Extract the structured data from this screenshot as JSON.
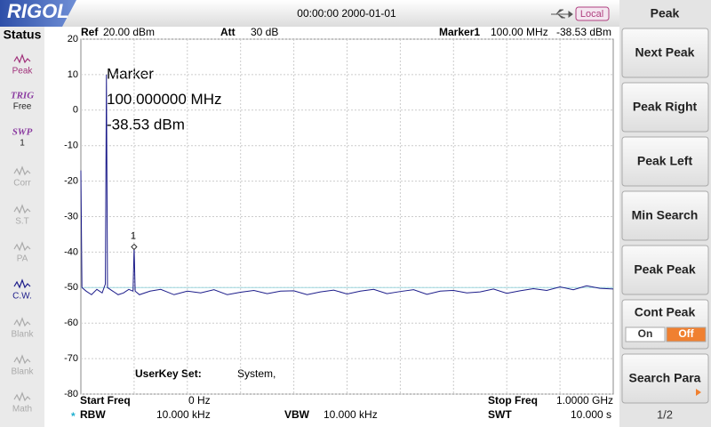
{
  "header": {
    "logo": "RIGOL",
    "datetime": "00:00:00 2000-01-01",
    "mode": "Local"
  },
  "status_panel": {
    "title": "Status",
    "items": [
      {
        "label": "Peak"
      },
      {
        "title": "TRIG",
        "label": "Free"
      },
      {
        "title": "SWP",
        "label": "1"
      },
      {
        "label": "Corr"
      },
      {
        "label": "S.T"
      },
      {
        "label": "PA"
      },
      {
        "label": "C.W."
      },
      {
        "label": "Blank"
      },
      {
        "label": "Blank"
      },
      {
        "label": "Math"
      }
    ]
  },
  "menu": {
    "title": "Peak",
    "buttons": [
      {
        "label": "Next Peak"
      },
      {
        "label": "Peak Right"
      },
      {
        "label": "Peak Left"
      },
      {
        "label": "Min Search"
      },
      {
        "label": "Peak Peak"
      },
      {
        "label": "Cont Peak",
        "options": [
          "On",
          "Off"
        ],
        "selected_option": 1
      },
      {
        "label": "Search Para"
      }
    ],
    "page": "1/2"
  },
  "display": {
    "ref_label": "Ref",
    "ref_value": "20.00 dBm",
    "att_label": "Att",
    "att_value": "30 dB",
    "marker_label": "Marker1",
    "marker_freq": "100.00 MHz",
    "marker_level": "-38.53 dBm",
    "annotation": [
      "Marker",
      "100.000000 MHz",
      "-38.53 dBm"
    ],
    "userkey_label": "UserKey Set:",
    "userkey_value": "System,",
    "start_label": "Start Freq",
    "start_value": "0 Hz",
    "stop_label": "Stop Freq",
    "stop_value": "1.0000 GHz",
    "rbw_flag": "*",
    "rbw_label": "RBW",
    "rbw_value": "10.000 kHz",
    "vbw_label": "VBW",
    "vbw_value": "10.000 kHz",
    "swt_label": "SWT",
    "swt_value": "10.000 s"
  },
  "chart_data": {
    "type": "line",
    "color": "#1c1c8a",
    "x": [
      0,
      2,
      10,
      20,
      30,
      40,
      46,
      48,
      50,
      60,
      70,
      80,
      90,
      98,
      100,
      102,
      110,
      130,
      150,
      175,
      200,
      225,
      250,
      275,
      300,
      325,
      350,
      375,
      400,
      425,
      450,
      475,
      500,
      525,
      550,
      575,
      600,
      625,
      650,
      675,
      700,
      725,
      750,
      775,
      800,
      825,
      850,
      875,
      900,
      925,
      950,
      975,
      1000
    ],
    "values": [
      -17,
      -50,
      -51,
      -52,
      -50.5,
      -51.5,
      -49,
      10,
      -50,
      -51,
      -52,
      -51.5,
      -50.5,
      -51,
      -38.53,
      -51,
      -52,
      -51,
      -50.5,
      -52,
      -51,
      -51.5,
      -50.6,
      -52,
      -51.3,
      -50.8,
      -51.7,
      -51,
      -50.9,
      -52,
      -51.2,
      -50.7,
      -51.8,
      -51,
      -50.5,
      -51.7,
      -51.1,
      -50.6,
      -51.9,
      -51,
      -50.8,
      -51.5,
      -51.2,
      -50.4,
      -51.6,
      -50.9,
      -50.3,
      -50.8,
      -49.8,
      -50.6,
      -49.5,
      -50.2,
      -50.4
    ],
    "xlim": [
      0,
      1000
    ],
    "ylim": [
      -80,
      20
    ],
    "yticks": [
      20,
      10,
      0,
      -10,
      -20,
      -30,
      -40,
      -50,
      -60,
      -70,
      -80
    ],
    "x_grid_divisions": 10,
    "grid": true,
    "threshold_line": -50,
    "marker": {
      "label": "1",
      "x": 100,
      "value": -38.53
    }
  }
}
